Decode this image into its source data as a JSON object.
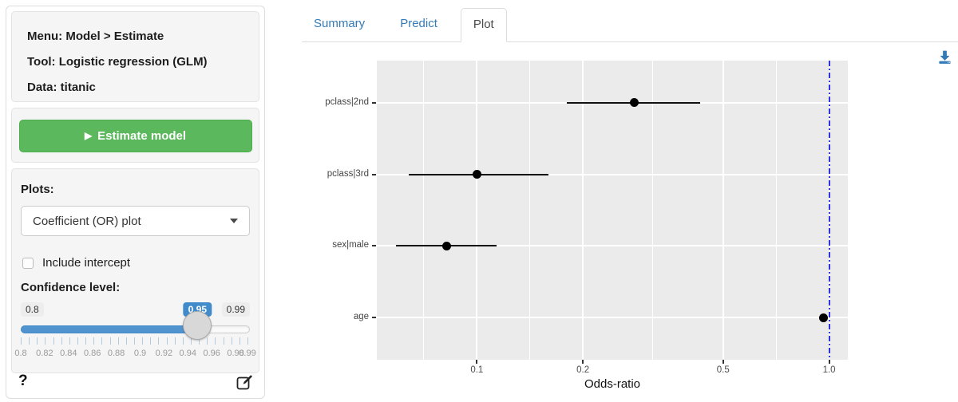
{
  "sidebar": {
    "info": {
      "menu": "Menu: Model > Estimate",
      "tool": "Tool: Logistic regression (GLM)",
      "data": "Data: titanic"
    },
    "estimate_button": {
      "icon": "play-icon",
      "label": "Estimate model"
    },
    "plots_label": "Plots:",
    "plot_select": {
      "value": "Coefficient (OR) plot"
    },
    "include_intercept": {
      "label": "Include intercept",
      "checked": false
    },
    "confidence_label": "Confidence level:",
    "slider": {
      "min": 0.8,
      "max": 0.99,
      "value": 0.95,
      "min_label": "0.8",
      "max_label": "0.99",
      "value_label": "0.95",
      "tick_labels": [
        "0.8",
        "0.82",
        "0.84",
        "0.86",
        "0.88",
        "0.9",
        "0.92",
        "0.94",
        "0.96",
        "0.98",
        "0.99"
      ],
      "tick_values": [
        0.8,
        0.82,
        0.84,
        0.86,
        0.88,
        0.9,
        0.92,
        0.94,
        0.96,
        0.98,
        0.99
      ]
    },
    "help_label": "?"
  },
  "tabs": [
    {
      "label": "Summary",
      "active": false
    },
    {
      "label": "Predict",
      "active": false
    },
    {
      "label": "Plot",
      "active": true
    }
  ],
  "colors": {
    "accent_blue": "#428bca",
    "tab_link_blue": "#337ab7",
    "button_green": "#5cb85c",
    "panel_gray": "#ebebeb",
    "reference_blue": "#3333e6",
    "download_blue": "#337ab7"
  },
  "chart_data": {
    "type": "scatter",
    "subtype": "coefficient-odds-ratio-plot",
    "xlabel": "Odds-ratio",
    "x_scale": "log",
    "xlim": [
      0.052,
      1.13
    ],
    "x_ticks": [
      0.1,
      0.2,
      0.5,
      1.0
    ],
    "x_tick_labels": [
      "0.1",
      "0.2",
      "0.5",
      "1.0"
    ],
    "x_minor_gridlines": [
      0.0707,
      0.1414,
      0.3162,
      0.7071
    ],
    "reference_line": {
      "x": 1.0,
      "style": "dot-dash",
      "color": "#3333e6"
    },
    "grid": true,
    "coefficients": [
      {
        "label": "pclass|2nd",
        "or": 0.28,
        "ci_low": 0.18,
        "ci_high": 0.43
      },
      {
        "label": "pclass|3rd",
        "or": 0.1,
        "ci_low": 0.064,
        "ci_high": 0.16
      },
      {
        "label": "sex|male",
        "or": 0.082,
        "ci_low": 0.059,
        "ci_high": 0.114
      },
      {
        "label": "age",
        "or": 0.965,
        "ci_low": 0.953,
        "ci_high": 0.977
      }
    ]
  }
}
